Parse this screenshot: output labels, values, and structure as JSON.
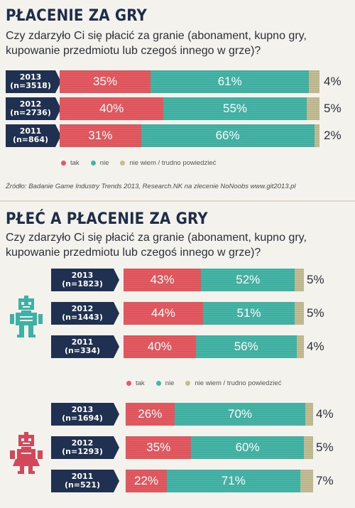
{
  "colors": {
    "tak": "#e45a60",
    "nie": "#44b5a6",
    "nw": "#c3bd94",
    "navy": "#1f3050",
    "robot_teal": "#3fb1a4",
    "robot_red": "#d2475a"
  },
  "legend": {
    "tak": "tak",
    "nie": "nie",
    "nw": "nie wiem / trudno powiedzieć"
  },
  "section1": {
    "title": "PŁACENIE ZA GRY",
    "question": "Czy zdarzyło Ci się płacić za granie (abonament, kupno gry, kupowanie przedmiotu lub czegoś innego w grze)?",
    "source": "Źródło: Badanie Game Industry Trends 2013, Research.NK na zlecenie NoNoobs www.git2013.pl"
  },
  "section2": {
    "title": "PŁEĆ A PŁACENIE ZA GRY",
    "question": "Czy zdarzyło Ci się płacić za granie (abonament, kupno gry, kupowanie przedmiotu lub czegoś innego w grze)?"
  },
  "chart_data": [
    {
      "type": "bar",
      "stacked": true,
      "orientation": "horizontal",
      "title": "PŁACENIE ZA GRY",
      "categories": [
        "2013 (n=3518)",
        "2012 (n=2736)",
        "2011 (n=864)"
      ],
      "series": [
        {
          "name": "tak",
          "values": [
            35,
            40,
            31
          ]
        },
        {
          "name": "nie",
          "values": [
            61,
            55,
            66
          ]
        },
        {
          "name": "nie wiem / trudno powiedzieć",
          "values": [
            4,
            5,
            2
          ]
        }
      ],
      "rows": [
        {
          "year": "2013",
          "n": "(n=3518)",
          "tak": 35,
          "nie": 61,
          "nw": 4,
          "tak_label": "35%",
          "nie_label": "61%",
          "nw_label": "4%"
        },
        {
          "year": "2012",
          "n": "(n=2736)",
          "tak": 40,
          "nie": 55,
          "nw": 5,
          "tak_label": "40%",
          "nie_label": "55%",
          "nw_label": "5%"
        },
        {
          "year": "2011",
          "n": "(n=864)",
          "tak": 31,
          "nie": 66,
          "nw": 2,
          "tak_label": "31%",
          "nie_label": "66%",
          "nw_label": "2%"
        }
      ]
    },
    {
      "type": "bar",
      "stacked": true,
      "orientation": "horizontal",
      "title": "PŁEĆ A PŁACENIE ZA GRY",
      "group_icon": "male-robot-icon",
      "categories": [
        "2013 (n=1823)",
        "2012 (n=1443)",
        "2011 (n=334)"
      ],
      "series": [
        {
          "name": "tak",
          "values": [
            43,
            44,
            40
          ]
        },
        {
          "name": "nie",
          "values": [
            52,
            51,
            56
          ]
        },
        {
          "name": "nie wiem / trudno powiedzieć",
          "values": [
            5,
            5,
            4
          ]
        }
      ],
      "rows": [
        {
          "year": "2013",
          "n": "(n=1823)",
          "tak": 43,
          "nie": 52,
          "nw": 5,
          "tak_label": "43%",
          "nie_label": "52%",
          "nw_label": "5%"
        },
        {
          "year": "2012",
          "n": "(n=1443)",
          "tak": 44,
          "nie": 51,
          "nw": 5,
          "tak_label": "44%",
          "nie_label": "51%",
          "nw_label": "5%"
        },
        {
          "year": "2011",
          "n": "(n=334)",
          "tak": 40,
          "nie": 56,
          "nw": 4,
          "tak_label": "40%",
          "nie_label": "56%",
          "nw_label": "4%"
        }
      ]
    },
    {
      "type": "bar",
      "stacked": true,
      "orientation": "horizontal",
      "title": "PŁEĆ A PŁACENIE ZA GRY",
      "group_icon": "female-robot-icon",
      "categories": [
        "2013 (n=1694)",
        "2012 (n=1293)",
        "2011 (n=521)"
      ],
      "series": [
        {
          "name": "tak",
          "values": [
            26,
            35,
            22
          ]
        },
        {
          "name": "nie",
          "values": [
            70,
            60,
            71
          ]
        },
        {
          "name": "nie wiem / trudno powiedzieć",
          "values": [
            4,
            5,
            7
          ]
        }
      ],
      "rows": [
        {
          "year": "2013",
          "n": "(n=1694)",
          "tak": 26,
          "nie": 70,
          "nw": 4,
          "tak_label": "26%",
          "nie_label": "70%",
          "nw_label": "4%"
        },
        {
          "year": "2012",
          "n": "(n=1293)",
          "tak": 35,
          "nie": 60,
          "nw": 5,
          "tak_label": "35%",
          "nie_label": "60%",
          "nw_label": "5%"
        },
        {
          "year": "2011",
          "n": "(n=521)",
          "tak": 22,
          "nie": 71,
          "nw": 7,
          "tak_label": "22%",
          "nie_label": "71%",
          "nw_label": "7%"
        }
      ]
    }
  ]
}
